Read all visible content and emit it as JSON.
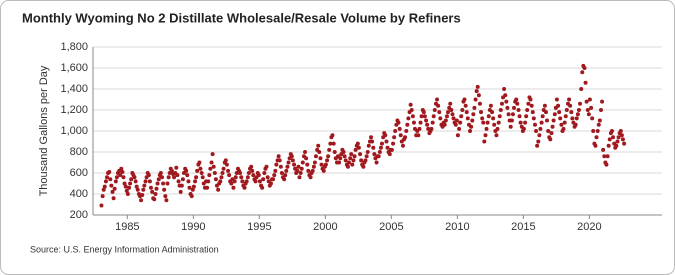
{
  "chart_data": {
    "type": "scatter",
    "title": "Monthly Wyoming No 2 Distillate Wholesale/Resale Volume by Refiners",
    "y_label": "Thousand Gallons per Day",
    "source": "Source: U.S. Energy Information Administration",
    "color": "#a0191e",
    "grid": true,
    "xlim": [
      1982.4,
      2025.5
    ],
    "xticks": [
      1985,
      1990,
      1995,
      2000,
      2005,
      2010,
      2015,
      2020
    ],
    "ylim": [
      200,
      1800
    ],
    "yticks": [
      200,
      400,
      600,
      800,
      {
        "value": 1000,
        "label": "1,000"
      },
      {
        "value": 1200,
        "label": "1,200"
      },
      {
        "value": 1400,
        "label": "1,400"
      },
      {
        "value": 1600,
        "label": "1,600"
      },
      {
        "value": 1800,
        "label": "1,800"
      }
    ],
    "x": [
      1983.04,
      1983.13,
      1983.21,
      1983.29,
      1983.38,
      1983.46,
      1983.54,
      1983.63,
      1983.71,
      1983.79,
      1983.88,
      1983.96,
      1984.04,
      1984.13,
      1984.21,
      1984.29,
      1984.38,
      1984.46,
      1984.54,
      1984.63,
      1984.71,
      1984.79,
      1984.88,
      1984.96,
      1985.04,
      1985.13,
      1985.21,
      1985.29,
      1985.38,
      1985.46,
      1985.54,
      1985.63,
      1985.71,
      1985.79,
      1985.88,
      1985.96,
      1986.04,
      1986.13,
      1986.21,
      1986.29,
      1986.38,
      1986.46,
      1986.54,
      1986.63,
      1986.71,
      1986.79,
      1986.88,
      1986.96,
      1987.04,
      1987.13,
      1987.21,
      1987.29,
      1987.38,
      1987.46,
      1987.54,
      1987.63,
      1987.71,
      1987.79,
      1987.88,
      1987.96,
      1988.04,
      1988.13,
      1988.21,
      1988.29,
      1988.38,
      1988.46,
      1988.54,
      1988.63,
      1988.71,
      1988.79,
      1988.88,
      1988.96,
      1989.04,
      1989.13,
      1989.21,
      1989.29,
      1989.38,
      1989.46,
      1989.54,
      1989.63,
      1989.71,
      1989.79,
      1989.88,
      1989.96,
      1990.04,
      1990.13,
      1990.21,
      1990.29,
      1990.38,
      1990.46,
      1990.54,
      1990.63,
      1990.71,
      1990.79,
      1990.88,
      1990.96,
      1991.04,
      1991.13,
      1991.21,
      1991.29,
      1991.38,
      1991.46,
      1991.54,
      1991.63,
      1991.71,
      1991.79,
      1991.88,
      1991.96,
      1992.04,
      1992.13,
      1992.21,
      1992.29,
      1992.38,
      1992.46,
      1992.54,
      1992.63,
      1992.71,
      1992.79,
      1992.88,
      1992.96,
      1993.04,
      1993.13,
      1993.21,
      1993.29,
      1993.38,
      1993.46,
      1993.54,
      1993.63,
      1993.71,
      1993.79,
      1993.88,
      1993.96,
      1994.04,
      1994.13,
      1994.21,
      1994.29,
      1994.38,
      1994.46,
      1994.54,
      1994.63,
      1994.71,
      1994.79,
      1994.88,
      1994.96,
      1995.04,
      1995.13,
      1995.21,
      1995.29,
      1995.38,
      1995.46,
      1995.54,
      1995.63,
      1995.71,
      1995.79,
      1995.88,
      1995.96,
      1996.04,
      1996.13,
      1996.21,
      1996.29,
      1996.38,
      1996.46,
      1996.54,
      1996.63,
      1996.71,
      1996.79,
      1996.88,
      1996.96,
      1997.04,
      1997.13,
      1997.21,
      1997.29,
      1997.38,
      1997.46,
      1997.54,
      1997.63,
      1997.71,
      1997.79,
      1997.88,
      1997.96,
      1998.04,
      1998.13,
      1998.21,
      1998.29,
      1998.38,
      1998.46,
      1998.54,
      1998.63,
      1998.71,
      1998.79,
      1998.88,
      1998.96,
      1999.04,
      1999.13,
      1999.21,
      1999.29,
      1999.38,
      1999.46,
      1999.54,
      1999.63,
      1999.71,
      1999.79,
      1999.88,
      1999.96,
      2000.04,
      2000.13,
      2000.21,
      2000.29,
      2000.38,
      2000.46,
      2000.54,
      2000.63,
      2000.71,
      2000.79,
      2000.88,
      2000.96,
      2001.04,
      2001.13,
      2001.21,
      2001.29,
      2001.38,
      2001.46,
      2001.54,
      2001.63,
      2001.71,
      2001.79,
      2001.88,
      2001.96,
      2002.04,
      2002.13,
      2002.21,
      2002.29,
      2002.38,
      2002.46,
      2002.54,
      2002.63,
      2002.71,
      2002.79,
      2002.88,
      2002.96,
      2003.04,
      2003.13,
      2003.21,
      2003.29,
      2003.38,
      2003.46,
      2003.54,
      2003.63,
      2003.71,
      2003.79,
      2003.88,
      2003.96,
      2004.04,
      2004.13,
      2004.21,
      2004.29,
      2004.38,
      2004.46,
      2004.54,
      2004.63,
      2004.71,
      2004.79,
      2004.88,
      2004.96,
      2005.04,
      2005.13,
      2005.21,
      2005.29,
      2005.38,
      2005.46,
      2005.54,
      2005.63,
      2005.71,
      2005.79,
      2005.88,
      2005.96,
      2006.04,
      2006.13,
      2006.21,
      2006.29,
      2006.38,
      2006.46,
      2006.54,
      2006.63,
      2006.71,
      2006.79,
      2006.88,
      2006.96,
      2007.04,
      2007.13,
      2007.21,
      2007.29,
      2007.38,
      2007.46,
      2007.54,
      2007.63,
      2007.71,
      2007.79,
      2007.88,
      2007.96,
      2008.04,
      2008.13,
      2008.21,
      2008.29,
      2008.38,
      2008.46,
      2008.54,
      2008.63,
      2008.71,
      2008.79,
      2008.88,
      2008.96,
      2009.04,
      2009.13,
      2009.21,
      2009.29,
      2009.38,
      2009.46,
      2009.54,
      2009.63,
      2009.71,
      2009.79,
      2009.88,
      2009.96,
      2010.04,
      2010.13,
      2010.21,
      2010.29,
      2010.38,
      2010.46,
      2010.54,
      2010.63,
      2010.71,
      2010.79,
      2010.88,
      2010.96,
      2011.04,
      2011.13,
      2011.21,
      2011.29,
      2011.38,
      2011.46,
      2011.54,
      2011.63,
      2011.71,
      2011.79,
      2011.88,
      2011.96,
      2012.04,
      2012.13,
      2012.21,
      2012.29,
      2012.38,
      2012.46,
      2012.54,
      2012.63,
      2012.71,
      2012.79,
      2012.88,
      2012.96,
      2013.04,
      2013.13,
      2013.21,
      2013.29,
      2013.38,
      2013.46,
      2013.54,
      2013.63,
      2013.71,
      2013.79,
      2013.88,
      2013.96,
      2014.04,
      2014.13,
      2014.21,
      2014.29,
      2014.38,
      2014.46,
      2014.54,
      2014.63,
      2014.71,
      2014.79,
      2014.88,
      2014.96,
      2015.04,
      2015.13,
      2015.21,
      2015.29,
      2015.38,
      2015.46,
      2015.54,
      2015.63,
      2015.71,
      2015.79,
      2015.88,
      2015.96,
      2016.04,
      2016.13,
      2016.21,
      2016.29,
      2016.38,
      2016.46,
      2016.54,
      2016.63,
      2016.71,
      2016.79,
      2016.88,
      2016.96,
      2017.04,
      2017.13,
      2017.21,
      2017.29,
      2017.38,
      2017.46,
      2017.54,
      2017.63,
      2017.71,
      2017.79,
      2017.88,
      2017.96,
      2018.04,
      2018.13,
      2018.21,
      2018.29,
      2018.38,
      2018.46,
      2018.54,
      2018.63,
      2018.71,
      2018.79,
      2018.88,
      2018.96,
      2019.04,
      2019.13,
      2019.21,
      2019.29,
      2019.38,
      2019.46,
      2019.54,
      2019.63,
      2019.71,
      2019.79,
      2019.88,
      2019.96,
      2020.04,
      2020.13,
      2020.21,
      2020.29,
      2020.38,
      2020.46,
      2020.54,
      2020.63,
      2020.71,
      2020.79,
      2020.88,
      2020.96,
      2021.04,
      2021.13,
      2021.21,
      2021.29,
      2021.38,
      2021.46,
      2021.54,
      2021.63,
      2021.71,
      2021.79,
      2021.88,
      2021.96,
      2022.04,
      2022.13,
      2022.21,
      2022.29,
      2022.38,
      2022.46,
      2022.54,
      2022.63
    ],
    "values": [
      290,
      380,
      440,
      470,
      520,
      560,
      600,
      610,
      540,
      480,
      420,
      360,
      450,
      520,
      560,
      600,
      620,
      580,
      640,
      610,
      560,
      500,
      470,
      430,
      400,
      460,
      500,
      540,
      600,
      580,
      560,
      520,
      470,
      440,
      400,
      380,
      340,
      390,
      440,
      480,
      520,
      560,
      600,
      580,
      520,
      460,
      420,
      360,
      350,
      400,
      450,
      500,
      540,
      580,
      600,
      560,
      500,
      440,
      380,
      340,
      500,
      560,
      600,
      640,
      620,
      590,
      560,
      600,
      650,
      580,
      520,
      480,
      420,
      480,
      540,
      600,
      640,
      620,
      580,
      520,
      460,
      400,
      380,
      440,
      470,
      520,
      560,
      620,
      680,
      700,
      640,
      600,
      560,
      500,
      460,
      520,
      460,
      520,
      580,
      640,
      700,
      780,
      660,
      600,
      540,
      480,
      440,
      500,
      520,
      560,
      600,
      640,
      700,
      720,
      680,
      620,
      580,
      520,
      500,
      540,
      460,
      520,
      560,
      600,
      640,
      620,
      600,
      560,
      520,
      480,
      460,
      500,
      520,
      560,
      600,
      640,
      660,
      620,
      580,
      540,
      520,
      560,
      600,
      580,
      520,
      480,
      460,
      540,
      600,
      640,
      660,
      560,
      520,
      480,
      500,
      540,
      540,
      580,
      620,
      680,
      720,
      760,
      720,
      660,
      600,
      560,
      540,
      580,
      620,
      660,
      700,
      740,
      780,
      760,
      720,
      680,
      640,
      600,
      620,
      660,
      560,
      600,
      640,
      700,
      760,
      800,
      740,
      680,
      620,
      580,
      560,
      600,
      620,
      660,
      700,
      760,
      820,
      860,
      800,
      740,
      680,
      640,
      620,
      660,
      680,
      720,
      760,
      820,
      880,
      940,
      960,
      880,
      800,
      740,
      700,
      760,
      700,
      740,
      780,
      820,
      800,
      760,
      720,
      680,
      660,
      700,
      740,
      780,
      680,
      720,
      760,
      820,
      860,
      880,
      840,
      780,
      720,
      680,
      660,
      700,
      720,
      760,
      800,
      860,
      900,
      940,
      900,
      840,
      780,
      740,
      700,
      760,
      760,
      800,
      840,
      880,
      940,
      980,
      960,
      900,
      840,
      800,
      780,
      820,
      820,
      880,
      940,
      1000,
      1060,
      1100,
      1080,
      1020,
      960,
      900,
      860,
      920,
      940,
      1000,
      1060,
      1120,
      1180,
      1250,
      1200,
      1140,
      1080,
      1020,
      960,
      1000,
      960,
      1020,
      1080,
      1140,
      1200,
      1180,
      1140,
      1100,
      1060,
      1020,
      980,
      1000,
      1020,
      1080,
      1140,
      1200,
      1260,
      1300,
      1240,
      1180,
      1120,
      1060,
      1040,
      1080,
      1060,
      1100,
      1140,
      1180,
      1220,
      1260,
      1200,
      1160,
      1120,
      1080,
      1060,
      1100,
      960,
      1020,
      1080,
      1140,
      1200,
      1280,
      1300,
      1240,
      1180,
      1120,
      1060,
      1000,
      1040,
      1100,
      1160,
      1220,
      1300,
      1380,
      1420,
      1340,
      1260,
      1180,
      1120,
      1080,
      900,
      960,
      1020,
      1080,
      1140,
      1200,
      1240,
      1180,
      1120,
      1060,
      1000,
      960,
      1020,
      1080,
      1140,
      1200,
      1260,
      1320,
      1400,
      1340,
      1280,
      1220,
      1160,
      1100,
      1040,
      1100,
      1160,
      1220,
      1280,
      1300,
      1260,
      1200,
      1140,
      1080,
      1040,
      1000,
      1020,
      1080,
      1140,
      1200,
      1260,
      1320,
      1300,
      1240,
      1180,
      1120,
      1060,
      1000,
      860,
      900,
      960,
      1020,
      1080,
      1140,
      1200,
      1240,
      1180,
      1100,
      1000,
      940,
      920,
      980,
      1040,
      1100,
      1160,
      1220,
      1300,
      1240,
      1180,
      1120,
      1060,
      1000,
      1020,
      1080,
      1140,
      1200,
      1260,
      1300,
      1240,
      1180,
      1120,
      1080,
      1040,
      1060,
      1120,
      1160,
      1200,
      1260,
      1400,
      1560,
      1620,
      1600,
      1460,
      1280,
      1200,
      1160,
      1300,
      1220,
      1120,
      1000,
      880,
      860,
      940,
      1000,
      1060,
      1100,
      1200,
      1280,
      820,
      760,
      700,
      680,
      760,
      860,
      920,
      980,
      1000,
      940,
      880,
      840,
      860,
      900,
      940,
      980,
      1000,
      960,
      920,
      880
    ]
  }
}
